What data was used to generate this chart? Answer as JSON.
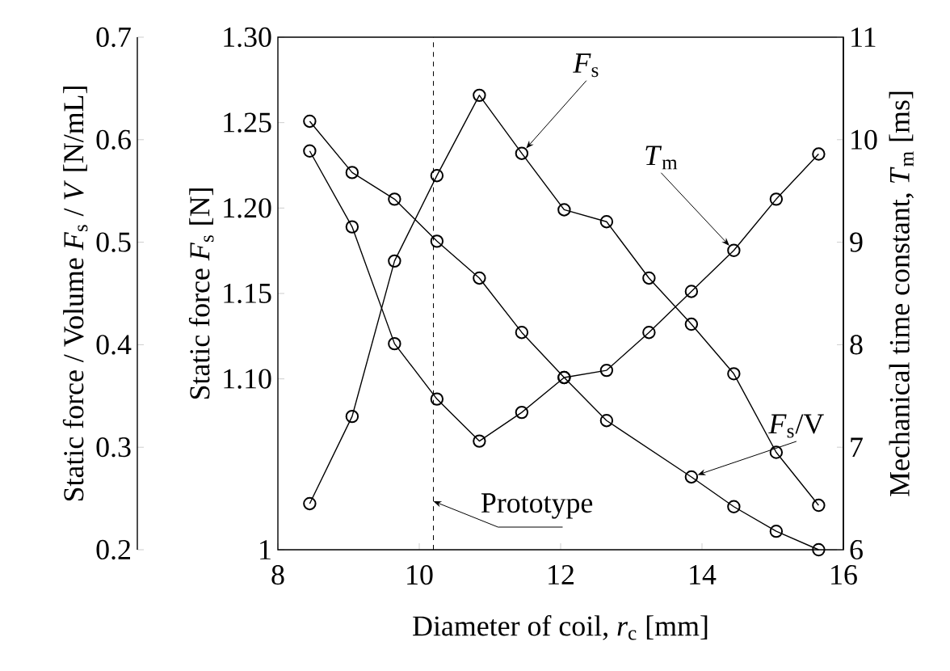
{
  "chart_data": {
    "type": "line",
    "xlabel": "Diameter of coil, *r*$_{c}$ [mm]",
    "ylabel": "Static force *F*$_{s}$ [N]",
    "y2label": "Mechanical time constant, *T*$_{m}$ [ms]",
    "y3label": "Static force / Volume *F*$_{s}$ / *V* [N/mL]",
    "x": [
      8.45,
      9.05,
      9.65,
      10.25,
      10.85,
      11.45,
      12.05,
      12.65,
      13.25,
      13.85,
      14.45,
      15.05,
      15.65
    ],
    "xlim": [
      8,
      16
    ],
    "xticks": [
      8,
      10,
      12,
      14,
      16
    ],
    "ylim": [
      1,
      1.3
    ],
    "yticks": [
      {
        "value": 1,
        "label": "1"
      },
      {
        "value": 1.1,
        "label": "1.10"
      },
      {
        "value": 1.15,
        "label": "1.15"
      },
      {
        "value": 1.2,
        "label": "1.20"
      },
      {
        "value": 1.25,
        "label": "1.25"
      },
      {
        "value": 1.3,
        "label": "1.30"
      }
    ],
    "y2lim": [
      6,
      11
    ],
    "y2ticks": [
      6,
      7,
      8,
      9,
      10,
      11
    ],
    "y3lim": [
      0.2,
      0.7
    ],
    "y3ticks": [
      0.2,
      0.3,
      0.4,
      0.5,
      0.6,
      0.7
    ],
    "marker": "circle",
    "line_style": "solid",
    "ref_lines": [
      {
        "axis": "x",
        "value": 10.2,
        "label": "Prototype",
        "line_style": "dashed"
      }
    ],
    "series": [
      {
        "name": "*F*$_{s}$",
        "color": "#000000",
        "values": [
          1.027,
          1.078,
          1.169,
          1.219,
          1.266,
          1.232,
          1.199,
          1.192,
          1.159,
          1.132,
          1.103,
          1.057,
          1.026
        ]
      },
      {
        "name": "*T*$_{m}$",
        "color": "#000000",
        "axis": "y2",
        "values": [
          9.89,
          9.15,
          8.01,
          7.47,
          7.06,
          7.34,
          7.68,
          7.75,
          8.12,
          8.52,
          8.92,
          9.42,
          9.86
        ]
      },
      {
        "name": "*F*$_{s}$/V",
        "color": "#000000",
        "axis": "y3",
        "x": [
          8.45,
          9.05,
          9.65,
          10.25,
          10.85,
          11.45,
          12.05,
          12.65,
          13.85,
          14.45,
          15.05,
          15.65
        ],
        "values": [
          0.618,
          0.568,
          0.542,
          0.501,
          0.465,
          0.412,
          0.368,
          0.326,
          0.271,
          0.242,
          0.218,
          0.2
        ]
      }
    ]
  }
}
